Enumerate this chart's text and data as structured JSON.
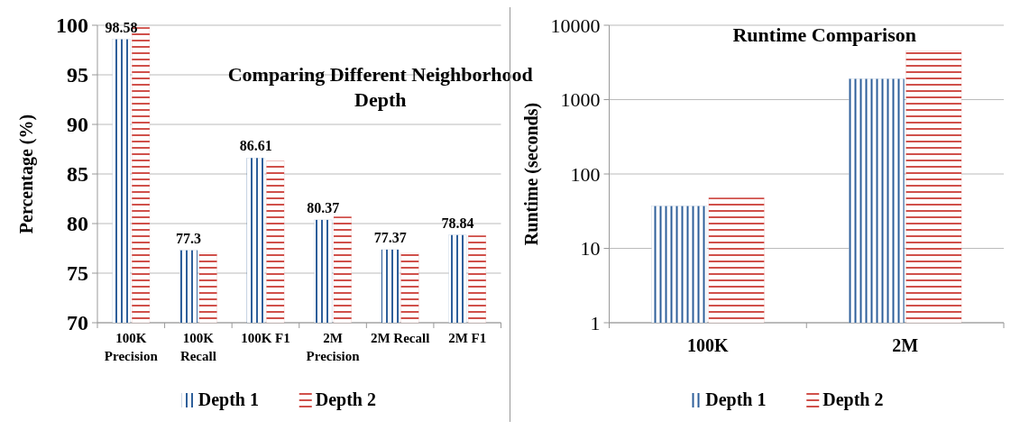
{
  "chart_data": [
    {
      "type": "bar",
      "title": "Comparing Different Neighborhood Depth",
      "ylabel": "Percentage (%)",
      "categories": [
        "100K Precision",
        "100K Recall",
        "100K F1",
        "2M Precision",
        "2M Recall",
        "2M F1"
      ],
      "series": [
        {
          "name": "Depth 1",
          "color": "#2e5f9a",
          "values": [
            98.58,
            77.3,
            86.61,
            80.37,
            77.37,
            78.84
          ],
          "value_labels": [
            "98.58",
            "77.3",
            "86.61",
            "80.37",
            "77.37",
            "78.84"
          ]
        },
        {
          "name": "Depth 2",
          "color": "#d0504a",
          "values": [
            99.8,
            77.0,
            86.3,
            80.7,
            77.0,
            78.8
          ]
        }
      ],
      "ylim": [
        70,
        100
      ],
      "yticks": [
        70,
        75,
        80,
        85,
        90,
        95,
        100
      ],
      "grid": "y",
      "legend": "bottom"
    },
    {
      "type": "bar",
      "title": "Runtime Comparison",
      "ylabel": "Runtime (seconds)",
      "categories": [
        "100K",
        "2M"
      ],
      "series": [
        {
          "name": "Depth 1",
          "color": "#2e5f9a",
          "values": [
            37,
            1900
          ]
        },
        {
          "name": "Depth 2",
          "color": "#d0504a",
          "values": [
            48,
            4500
          ]
        }
      ],
      "log": true,
      "ylim": [
        1,
        10000
      ],
      "yticks": [
        1,
        10,
        100,
        1000,
        10000
      ],
      "grid": "y",
      "legend": "bottom"
    }
  ]
}
